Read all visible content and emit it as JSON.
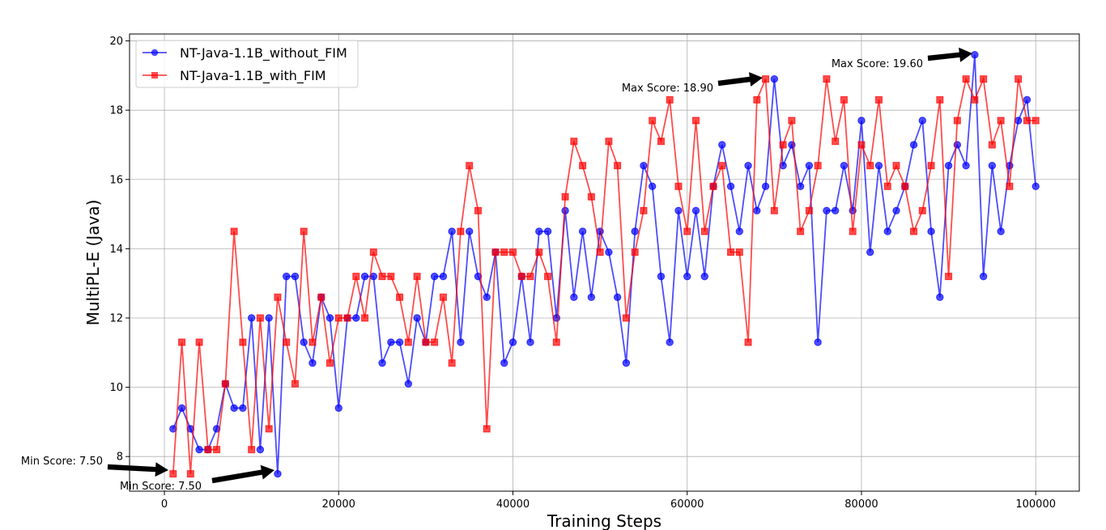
{
  "chart_data": {
    "type": "line",
    "title": "",
    "xlabel": "Training Steps",
    "ylabel": "MultiPL-E (Java)",
    "xlim": [
      -4000,
      105000
    ],
    "ylim": [
      7.0,
      20.2
    ],
    "x_ticks": [
      0,
      20000,
      40000,
      60000,
      80000,
      100000
    ],
    "x_tick_labels": [
      "0",
      "20000",
      "40000",
      "60000",
      "80000",
      "100000"
    ],
    "y_ticks": [
      8,
      10,
      12,
      14,
      16,
      18,
      20
    ],
    "y_tick_labels": [
      "8",
      "10",
      "12",
      "14",
      "16",
      "18",
      "20"
    ],
    "grid": true,
    "legend_position": "top-left",
    "series": [
      {
        "name": "NT-Java-1.1B_without_FIM",
        "color": "#0000ff",
        "marker": "circle",
        "x": [
          1000,
          2000,
          3000,
          4000,
          5000,
          6000,
          7000,
          8000,
          9000,
          10000,
          11000,
          12000,
          13000,
          14000,
          15000,
          16000,
          17000,
          18000,
          19000,
          20000,
          21000,
          22000,
          23000,
          24000,
          25000,
          26000,
          27000,
          28000,
          29000,
          30000,
          31000,
          32000,
          33000,
          34000,
          35000,
          36000,
          37000,
          38000,
          39000,
          40000,
          41000,
          42000,
          43000,
          44000,
          45000,
          46000,
          47000,
          48000,
          49000,
          50000,
          51000,
          52000,
          53000,
          54000,
          55000,
          56000,
          57000,
          58000,
          59000,
          60000,
          61000,
          62000,
          63000,
          64000,
          65000,
          66000,
          67000,
          68000,
          69000,
          70000,
          71000,
          72000,
          73000,
          74000,
          75000,
          76000,
          77000,
          78000,
          79000,
          80000,
          81000,
          82000,
          83000,
          84000,
          85000,
          86000,
          87000,
          88000,
          89000,
          90000,
          91000,
          92000,
          93000,
          94000,
          95000,
          96000,
          97000,
          98000,
          99000,
          100000
        ],
        "values": [
          8.8,
          9.4,
          8.8,
          8.2,
          8.2,
          8.8,
          10.1,
          9.4,
          9.4,
          12.0,
          8.2,
          12.0,
          7.5,
          13.2,
          13.2,
          11.3,
          10.7,
          12.6,
          12.0,
          9.4,
          12.0,
          12.0,
          13.2,
          13.2,
          10.7,
          11.3,
          11.3,
          10.1,
          12.0,
          11.3,
          13.2,
          13.2,
          14.5,
          11.3,
          14.5,
          13.2,
          12.6,
          13.9,
          10.7,
          11.3,
          13.2,
          11.3,
          14.5,
          14.5,
          12.0,
          15.1,
          12.6,
          14.5,
          12.6,
          14.5,
          13.9,
          12.6,
          10.7,
          14.5,
          16.4,
          15.8,
          13.2,
          11.3,
          15.1,
          13.2,
          15.1,
          13.2,
          15.8,
          17.0,
          15.8,
          14.5,
          16.4,
          15.1,
          15.8,
          18.9,
          16.4,
          17.0,
          15.8,
          16.4,
          11.3,
          15.1,
          15.1,
          16.4,
          15.1,
          17.7,
          13.9,
          16.4,
          14.5,
          15.1,
          15.8,
          17.0,
          17.7,
          14.5,
          12.6,
          16.4,
          17.0,
          16.4,
          19.6,
          13.2,
          16.4,
          14.5,
          16.4,
          17.7,
          18.3,
          15.8
        ]
      },
      {
        "name": "NT-Java-1.1B_with_FIM",
        "color": "#ff0000",
        "marker": "square",
        "x": [
          1000,
          2000,
          3000,
          4000,
          5000,
          6000,
          7000,
          8000,
          9000,
          10000,
          11000,
          12000,
          13000,
          14000,
          15000,
          16000,
          17000,
          18000,
          19000,
          20000,
          21000,
          22000,
          23000,
          24000,
          25000,
          26000,
          27000,
          28000,
          29000,
          30000,
          31000,
          32000,
          33000,
          34000,
          35000,
          36000,
          37000,
          38000,
          39000,
          40000,
          41000,
          42000,
          43000,
          44000,
          45000,
          46000,
          47000,
          48000,
          49000,
          50000,
          51000,
          52000,
          53000,
          54000,
          55000,
          56000,
          57000,
          58000,
          59000,
          60000,
          61000,
          62000,
          63000,
          64000,
          65000,
          66000,
          67000,
          68000,
          69000,
          70000,
          71000,
          72000,
          73000,
          74000,
          75000,
          76000,
          77000,
          78000,
          79000,
          80000,
          81000,
          82000,
          83000,
          84000,
          85000,
          86000,
          87000,
          88000,
          89000,
          90000,
          91000,
          92000,
          93000,
          94000,
          95000,
          96000,
          97000,
          98000,
          99000,
          100000
        ],
        "values": [
          7.5,
          11.3,
          7.5,
          11.3,
          8.2,
          8.2,
          10.1,
          14.5,
          11.3,
          8.2,
          12.0,
          8.8,
          12.6,
          11.3,
          10.1,
          14.5,
          11.3,
          12.6,
          10.7,
          12.0,
          12.0,
          13.2,
          12.0,
          13.9,
          13.2,
          13.2,
          12.6,
          11.3,
          13.2,
          11.3,
          11.3,
          12.6,
          10.7,
          14.5,
          16.4,
          15.1,
          8.8,
          13.9,
          13.9,
          13.9,
          13.2,
          13.2,
          13.9,
          13.2,
          11.3,
          15.5,
          17.1,
          16.4,
          15.5,
          13.9,
          17.1,
          16.4,
          12.0,
          13.9,
          15.1,
          17.7,
          17.1,
          18.3,
          15.8,
          14.5,
          17.7,
          14.5,
          15.8,
          16.4,
          13.9,
          13.9,
          11.3,
          18.3,
          18.9,
          15.1,
          17.0,
          17.7,
          14.5,
          15.1,
          16.4,
          18.9,
          17.1,
          18.3,
          14.5,
          17.0,
          16.4,
          18.3,
          15.8,
          16.4,
          15.8,
          14.5,
          15.1,
          16.4,
          18.3,
          13.2,
          17.7,
          18.9,
          18.3,
          18.9,
          17.0,
          17.7,
          15.8,
          18.9,
          17.7,
          17.7
        ]
      }
    ],
    "annotations": [
      {
        "id": "ann-max-without",
        "text": "Max Score: 19.60",
        "x": 93000,
        "y": 19.6
      },
      {
        "id": "ann-max-with",
        "text": "Max Score: 18.90",
        "x": 69000,
        "y": 18.9
      },
      {
        "id": "ann-min-with",
        "text": "Min Score: 7.50",
        "x": 1000,
        "y": 7.5
      },
      {
        "id": "ann-min-without",
        "text": "Min Score: 7.50",
        "x": 13000,
        "y": 7.5
      }
    ]
  }
}
